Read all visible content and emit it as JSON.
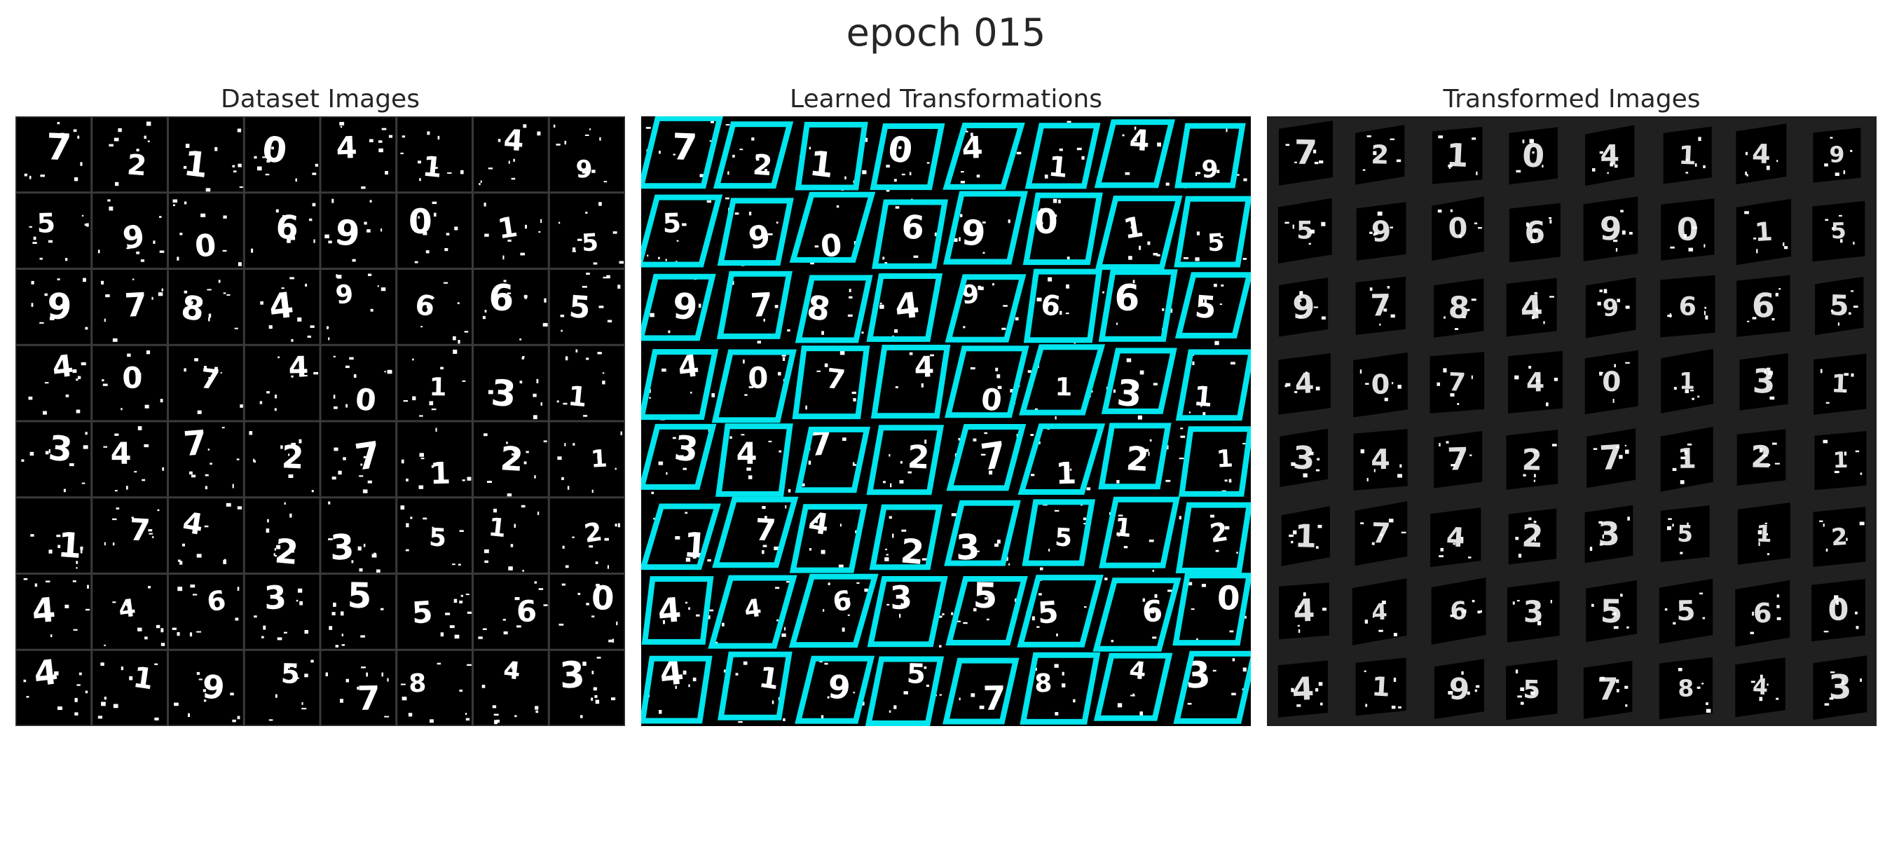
{
  "figure": {
    "title": "epoch 015",
    "panels": [
      {
        "title": "Dataset Images"
      },
      {
        "title": "Learned Transformations"
      },
      {
        "title": "Transformed Images"
      }
    ]
  },
  "grid": {
    "rows": 8,
    "cols": 8,
    "digits": [
      "7",
      "2",
      "1",
      "0",
      "4",
      "1",
      "4",
      "9",
      "5",
      "9",
      "0",
      "6",
      "9",
      "0",
      "1",
      "5",
      "9",
      "7",
      "8",
      "4",
      "9",
      "6",
      "6",
      "5",
      "4",
      "0",
      "7",
      "4",
      "0",
      "1",
      "3",
      "1",
      "3",
      "4",
      "7",
      "2",
      "7",
      "1",
      "2",
      "1",
      "1",
      "7",
      "4",
      "2",
      "3",
      "5",
      "1",
      "2",
      "4",
      "4",
      "6",
      "3",
      "5",
      "5",
      "6",
      "0",
      "4",
      "1",
      "9",
      "5",
      "7",
      "8",
      "4",
      "3"
    ]
  },
  "colors": {
    "background": "#ffffff",
    "tile": "#000000",
    "grid_line": "#3a3a3a",
    "digit": "#ffffff",
    "transform_outline": "#00e5ee",
    "transformed_panel_bg": "#202020"
  }
}
